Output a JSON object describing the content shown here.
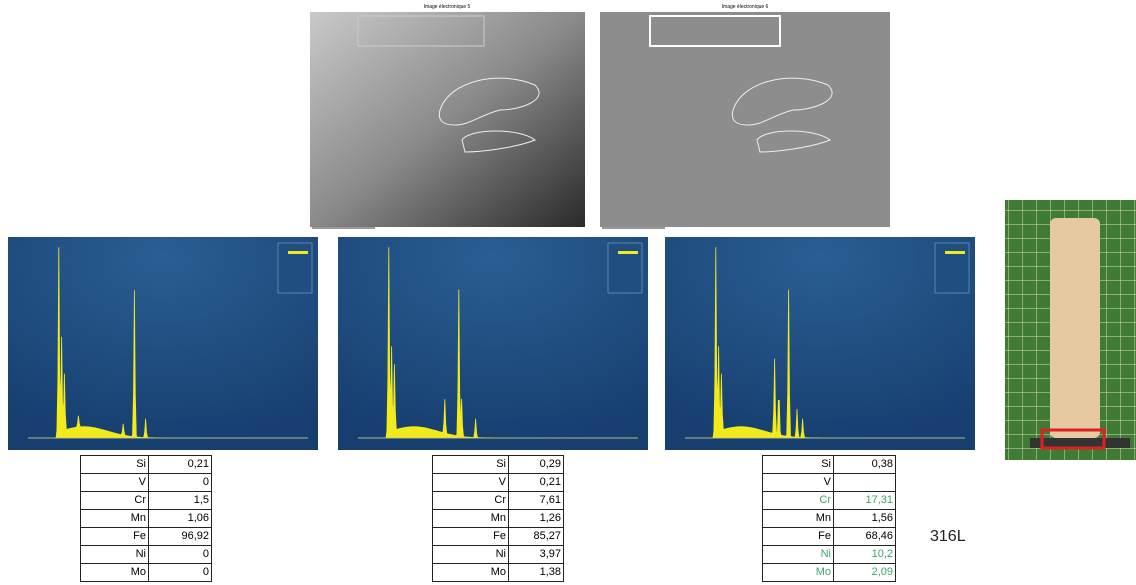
{
  "images": [
    {
      "title": "Image électronique 5"
    },
    {
      "title": "Image électronique 6"
    }
  ],
  "tables": [
    {
      "rows": [
        [
          "Si",
          "0,21"
        ],
        [
          "V",
          "0"
        ],
        [
          "Cr",
          "1,5"
        ],
        [
          "Mn",
          "1,06"
        ],
        [
          "Fe",
          "96,92"
        ],
        [
          "Ni",
          "0"
        ],
        [
          "Mo",
          "0"
        ]
      ]
    },
    {
      "rows": [
        [
          "Si",
          "0,29"
        ],
        [
          "V",
          "0,21"
        ],
        [
          "Cr",
          "7,61"
        ],
        [
          "Mn",
          "1,26"
        ],
        [
          "Fe",
          "85,27"
        ],
        [
          "Ni",
          "3,97"
        ],
        [
          "Mo",
          "1,38"
        ]
      ]
    },
    {
      "rows": [
        [
          "Si",
          "0,38"
        ],
        [
          "V",
          null
        ],
        [
          "Cr",
          "17,31"
        ],
        [
          "Mn",
          "1,56"
        ],
        [
          "Fe",
          "68,46"
        ],
        [
          "Ni",
          "10,2"
        ],
        [
          "Mo",
          "2,09"
        ]
      ]
    }
  ],
  "label": "316L"
}
